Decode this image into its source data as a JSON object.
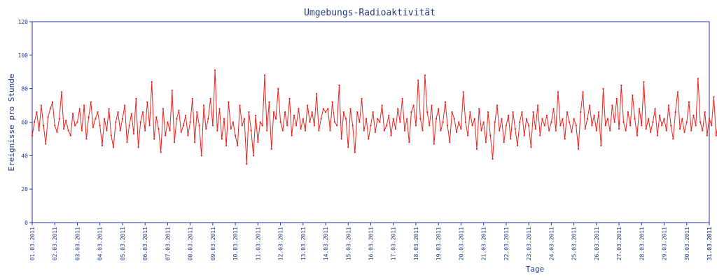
{
  "chart_data": {
    "type": "line",
    "title": "Umgebungs-Radioaktivität",
    "xlabel": "Tage",
    "ylabel": "Ereignisse pro Stunde",
    "ylim": [
      0,
      120
    ],
    "yticks": [
      0,
      20,
      40,
      60,
      80,
      100,
      120
    ],
    "xticks": [
      "01.03.2011",
      "02.03.2011",
      "03.03.2011",
      "04.03.2011",
      "05.03.2011",
      "06.03.2011",
      "07.03.2011",
      "08.03.2011",
      "09.03.2011",
      "10.03.2011",
      "11.03.2011",
      "12.03.2011",
      "13.03.2011",
      "14.03.2011",
      "15.03.2011",
      "16.03.2011",
      "17.03.2011",
      "18.03.2011",
      "19.03.2011",
      "20.03.2011",
      "21.03.2011",
      "22.03.2011",
      "23.03.2011",
      "24.03.2011",
      "25.03.2011",
      "26.03.2011",
      "27.03.2011",
      "28.03.2011",
      "29.03.2011",
      "30.03.2011",
      "31.03.2011",
      "31.03.2011"
    ],
    "grid": false,
    "series": [
      {
        "color": "#e8231f",
        "x_unit": "days since 01.03.2011",
        "points": [
          [
            0.0,
            52
          ],
          [
            0.1,
            60
          ],
          [
            0.2,
            66
          ],
          [
            0.3,
            55
          ],
          [
            0.4,
            70
          ],
          [
            0.5,
            58
          ],
          [
            0.6,
            47
          ],
          [
            0.7,
            63
          ],
          [
            0.8,
            68
          ],
          [
            0.9,
            72
          ],
          [
            1.0,
            58
          ],
          [
            1.1,
            54
          ],
          [
            1.2,
            62
          ],
          [
            1.3,
            78
          ],
          [
            1.4,
            56
          ],
          [
            1.5,
            61
          ],
          [
            1.6,
            55
          ],
          [
            1.7,
            52
          ],
          [
            1.8,
            65
          ],
          [
            1.9,
            58
          ],
          [
            2.0,
            60
          ],
          [
            2.1,
            68
          ],
          [
            2.2,
            55
          ],
          [
            2.3,
            70
          ],
          [
            2.4,
            50
          ],
          [
            2.5,
            63
          ],
          [
            2.6,
            72
          ],
          [
            2.7,
            57
          ],
          [
            2.8,
            62
          ],
          [
            2.9,
            66
          ],
          [
            3.0,
            58
          ],
          [
            3.1,
            46
          ],
          [
            3.2,
            62
          ],
          [
            3.3,
            55
          ],
          [
            3.4,
            68
          ],
          [
            3.5,
            52
          ],
          [
            3.6,
            45
          ],
          [
            3.7,
            60
          ],
          [
            3.8,
            66
          ],
          [
            3.9,
            55
          ],
          [
            4.0,
            62
          ],
          [
            4.1,
            70
          ],
          [
            4.2,
            48
          ],
          [
            4.3,
            58
          ],
          [
            4.4,
            65
          ],
          [
            4.5,
            53
          ],
          [
            4.6,
            74
          ],
          [
            4.7,
            45
          ],
          [
            4.8,
            60
          ],
          [
            4.9,
            66
          ],
          [
            5.0,
            55
          ],
          [
            5.1,
            72
          ],
          [
            5.2,
            58
          ],
          [
            5.3,
            84
          ],
          [
            5.4,
            50
          ],
          [
            5.5,
            63
          ],
          [
            5.6,
            56
          ],
          [
            5.7,
            42
          ],
          [
            5.8,
            68
          ],
          [
            5.9,
            52
          ],
          [
            6.0,
            60
          ],
          [
            6.1,
            55
          ],
          [
            6.2,
            79
          ],
          [
            6.3,
            48
          ],
          [
            6.4,
            62
          ],
          [
            6.5,
            67
          ],
          [
            6.6,
            54
          ],
          [
            6.7,
            58
          ],
          [
            6.8,
            64
          ],
          [
            6.9,
            52
          ],
          [
            7.0,
            60
          ],
          [
            7.1,
            74
          ],
          [
            7.2,
            48
          ],
          [
            7.3,
            66
          ],
          [
            7.4,
            58
          ],
          [
            7.5,
            40
          ],
          [
            7.6,
            70
          ],
          [
            7.7,
            56
          ],
          [
            7.8,
            62
          ],
          [
            7.9,
            74
          ],
          [
            8.0,
            58
          ],
          [
            8.1,
            91
          ],
          [
            8.2,
            55
          ],
          [
            8.3,
            68
          ],
          [
            8.4,
            50
          ],
          [
            8.5,
            62
          ],
          [
            8.6,
            46
          ],
          [
            8.7,
            72
          ],
          [
            8.8,
            56
          ],
          [
            8.9,
            60
          ],
          [
            9.0,
            52
          ],
          [
            9.1,
            46
          ],
          [
            9.2,
            70
          ],
          [
            9.3,
            58
          ],
          [
            9.4,
            62
          ],
          [
            9.5,
            35
          ],
          [
            9.6,
            66
          ],
          [
            9.7,
            55
          ],
          [
            9.8,
            40
          ],
          [
            9.9,
            64
          ],
          [
            10.0,
            48
          ],
          [
            10.1,
            60
          ],
          [
            10.2,
            58
          ],
          [
            10.3,
            88
          ],
          [
            10.4,
            55
          ],
          [
            10.5,
            72
          ],
          [
            10.6,
            44
          ],
          [
            10.7,
            66
          ],
          [
            10.8,
            62
          ],
          [
            10.9,
            80
          ],
          [
            11.0,
            60
          ],
          [
            11.1,
            55
          ],
          [
            11.2,
            66
          ],
          [
            11.3,
            58
          ],
          [
            11.4,
            74
          ],
          [
            11.5,
            52
          ],
          [
            11.6,
            64
          ],
          [
            11.7,
            58
          ],
          [
            11.8,
            68
          ],
          [
            11.9,
            56
          ],
          [
            12.0,
            62
          ],
          [
            12.1,
            55
          ],
          [
            12.2,
            70
          ],
          [
            12.3,
            60
          ],
          [
            12.4,
            66
          ],
          [
            12.5,
            58
          ],
          [
            12.6,
            77
          ],
          [
            12.7,
            55
          ],
          [
            12.8,
            62
          ],
          [
            12.9,
            68
          ],
          [
            13.0,
            66
          ],
          [
            13.1,
            68
          ],
          [
            13.2,
            55
          ],
          [
            13.3,
            72
          ],
          [
            13.4,
            60
          ],
          [
            13.5,
            58
          ],
          [
            13.6,
            82
          ],
          [
            13.7,
            50
          ],
          [
            13.8,
            66
          ],
          [
            13.9,
            62
          ],
          [
            14.0,
            45
          ],
          [
            14.1,
            68
          ],
          [
            14.2,
            58
          ],
          [
            14.3,
            42
          ],
          [
            14.4,
            66
          ],
          [
            14.5,
            60
          ],
          [
            14.6,
            74
          ],
          [
            14.7,
            55
          ],
          [
            14.8,
            62
          ],
          [
            14.9,
            50
          ],
          [
            15.0,
            58
          ],
          [
            15.1,
            66
          ],
          [
            15.2,
            54
          ],
          [
            15.3,
            62
          ],
          [
            15.4,
            60
          ],
          [
            15.5,
            70
          ],
          [
            15.6,
            55
          ],
          [
            15.7,
            58
          ],
          [
            15.8,
            64
          ],
          [
            15.9,
            52
          ],
          [
            16.0,
            62
          ],
          [
            16.1,
            56
          ],
          [
            16.2,
            68
          ],
          [
            16.3,
            60
          ],
          [
            16.4,
            74
          ],
          [
            16.5,
            55
          ],
          [
            16.6,
            62
          ],
          [
            16.7,
            48
          ],
          [
            16.8,
            66
          ],
          [
            16.9,
            70
          ],
          [
            17.0,
            58
          ],
          [
            17.1,
            85
          ],
          [
            17.2,
            62
          ],
          [
            17.3,
            55
          ],
          [
            17.4,
            88
          ],
          [
            17.5,
            66
          ],
          [
            17.6,
            58
          ],
          [
            17.7,
            70
          ],
          [
            17.8,
            47
          ],
          [
            17.9,
            62
          ],
          [
            18.0,
            68
          ],
          [
            18.1,
            55
          ],
          [
            18.2,
            60
          ],
          [
            18.3,
            72
          ],
          [
            18.4,
            58
          ],
          [
            18.5,
            48
          ],
          [
            18.6,
            66
          ],
          [
            18.7,
            62
          ],
          [
            18.8,
            54
          ],
          [
            18.9,
            60
          ],
          [
            19.0,
            56
          ],
          [
            19.1,
            78
          ],
          [
            19.2,
            60
          ],
          [
            19.3,
            52
          ],
          [
            19.4,
            66
          ],
          [
            19.5,
            58
          ],
          [
            19.6,
            62
          ],
          [
            19.7,
            44
          ],
          [
            19.8,
            68
          ],
          [
            19.9,
            55
          ],
          [
            20.0,
            60
          ],
          [
            20.1,
            48
          ],
          [
            20.2,
            66
          ],
          [
            20.3,
            52
          ],
          [
            20.4,
            38
          ],
          [
            20.5,
            60
          ],
          [
            20.6,
            70
          ],
          [
            20.7,
            55
          ],
          [
            20.8,
            62
          ],
          [
            20.9,
            48
          ],
          [
            21.0,
            58
          ],
          [
            21.1,
            64
          ],
          [
            21.2,
            50
          ],
          [
            21.3,
            66
          ],
          [
            21.4,
            56
          ],
          [
            21.5,
            46
          ],
          [
            21.6,
            60
          ],
          [
            21.7,
            66
          ],
          [
            21.8,
            52
          ],
          [
            21.9,
            62
          ],
          [
            22.0,
            58
          ],
          [
            22.1,
            45
          ],
          [
            22.2,
            66
          ],
          [
            22.3,
            56
          ],
          [
            22.4,
            70
          ],
          [
            22.5,
            52
          ],
          [
            22.6,
            62
          ],
          [
            22.7,
            58
          ],
          [
            22.8,
            64
          ],
          [
            22.9,
            55
          ],
          [
            23.0,
            60
          ],
          [
            23.1,
            68
          ],
          [
            23.2,
            55
          ],
          [
            23.3,
            78
          ],
          [
            23.4,
            58
          ],
          [
            23.5,
            62
          ],
          [
            23.6,
            50
          ],
          [
            23.7,
            66
          ],
          [
            23.8,
            60
          ],
          [
            23.9,
            54
          ],
          [
            24.0,
            62
          ],
          [
            24.1,
            58
          ],
          [
            24.2,
            44
          ],
          [
            24.3,
            66
          ],
          [
            24.4,
            78
          ],
          [
            24.5,
            56
          ],
          [
            24.6,
            62
          ],
          [
            24.7,
            70
          ],
          [
            24.8,
            58
          ],
          [
            24.9,
            64
          ],
          [
            25.0,
            55
          ],
          [
            25.1,
            66
          ],
          [
            25.2,
            46
          ],
          [
            25.3,
            80
          ],
          [
            25.4,
            58
          ],
          [
            25.5,
            62
          ],
          [
            25.6,
            55
          ],
          [
            25.7,
            70
          ],
          [
            25.8,
            60
          ],
          [
            25.9,
            74
          ],
          [
            26.0,
            56
          ],
          [
            26.1,
            82
          ],
          [
            26.2,
            60
          ],
          [
            26.3,
            55
          ],
          [
            26.4,
            66
          ],
          [
            26.5,
            58
          ],
          [
            26.6,
            76
          ],
          [
            26.7,
            62
          ],
          [
            26.8,
            52
          ],
          [
            26.9,
            68
          ],
          [
            27.0,
            58
          ],
          [
            27.1,
            84
          ],
          [
            27.2,
            56
          ],
          [
            27.3,
            62
          ],
          [
            27.4,
            54
          ],
          [
            27.5,
            60
          ],
          [
            27.6,
            68
          ],
          [
            27.7,
            52
          ],
          [
            27.8,
            64
          ],
          [
            27.9,
            58
          ],
          [
            28.0,
            62
          ],
          [
            28.1,
            55
          ],
          [
            28.2,
            70
          ],
          [
            28.3,
            58
          ],
          [
            28.4,
            50
          ],
          [
            28.5,
            66
          ],
          [
            28.6,
            78
          ],
          [
            28.7,
            56
          ],
          [
            28.8,
            62
          ],
          [
            28.9,
            54
          ],
          [
            29.0,
            60
          ],
          [
            29.1,
            72
          ],
          [
            29.2,
            55
          ],
          [
            29.3,
            64
          ],
          [
            29.4,
            58
          ],
          [
            29.5,
            86
          ],
          [
            29.6,
            60
          ],
          [
            29.7,
            55
          ],
          [
            29.8,
            66
          ],
          [
            29.9,
            52
          ],
          [
            30.0,
            62
          ],
          [
            30.1,
            58
          ],
          [
            30.2,
            75
          ],
          [
            30.3,
            52
          ],
          [
            30.4,
            60
          ],
          [
            30.5,
            56
          ],
          [
            30.6,
            62
          ],
          [
            30.7,
            58
          ],
          [
            30.8,
            55
          ],
          [
            30.9,
            62
          ]
        ]
      }
    ]
  }
}
